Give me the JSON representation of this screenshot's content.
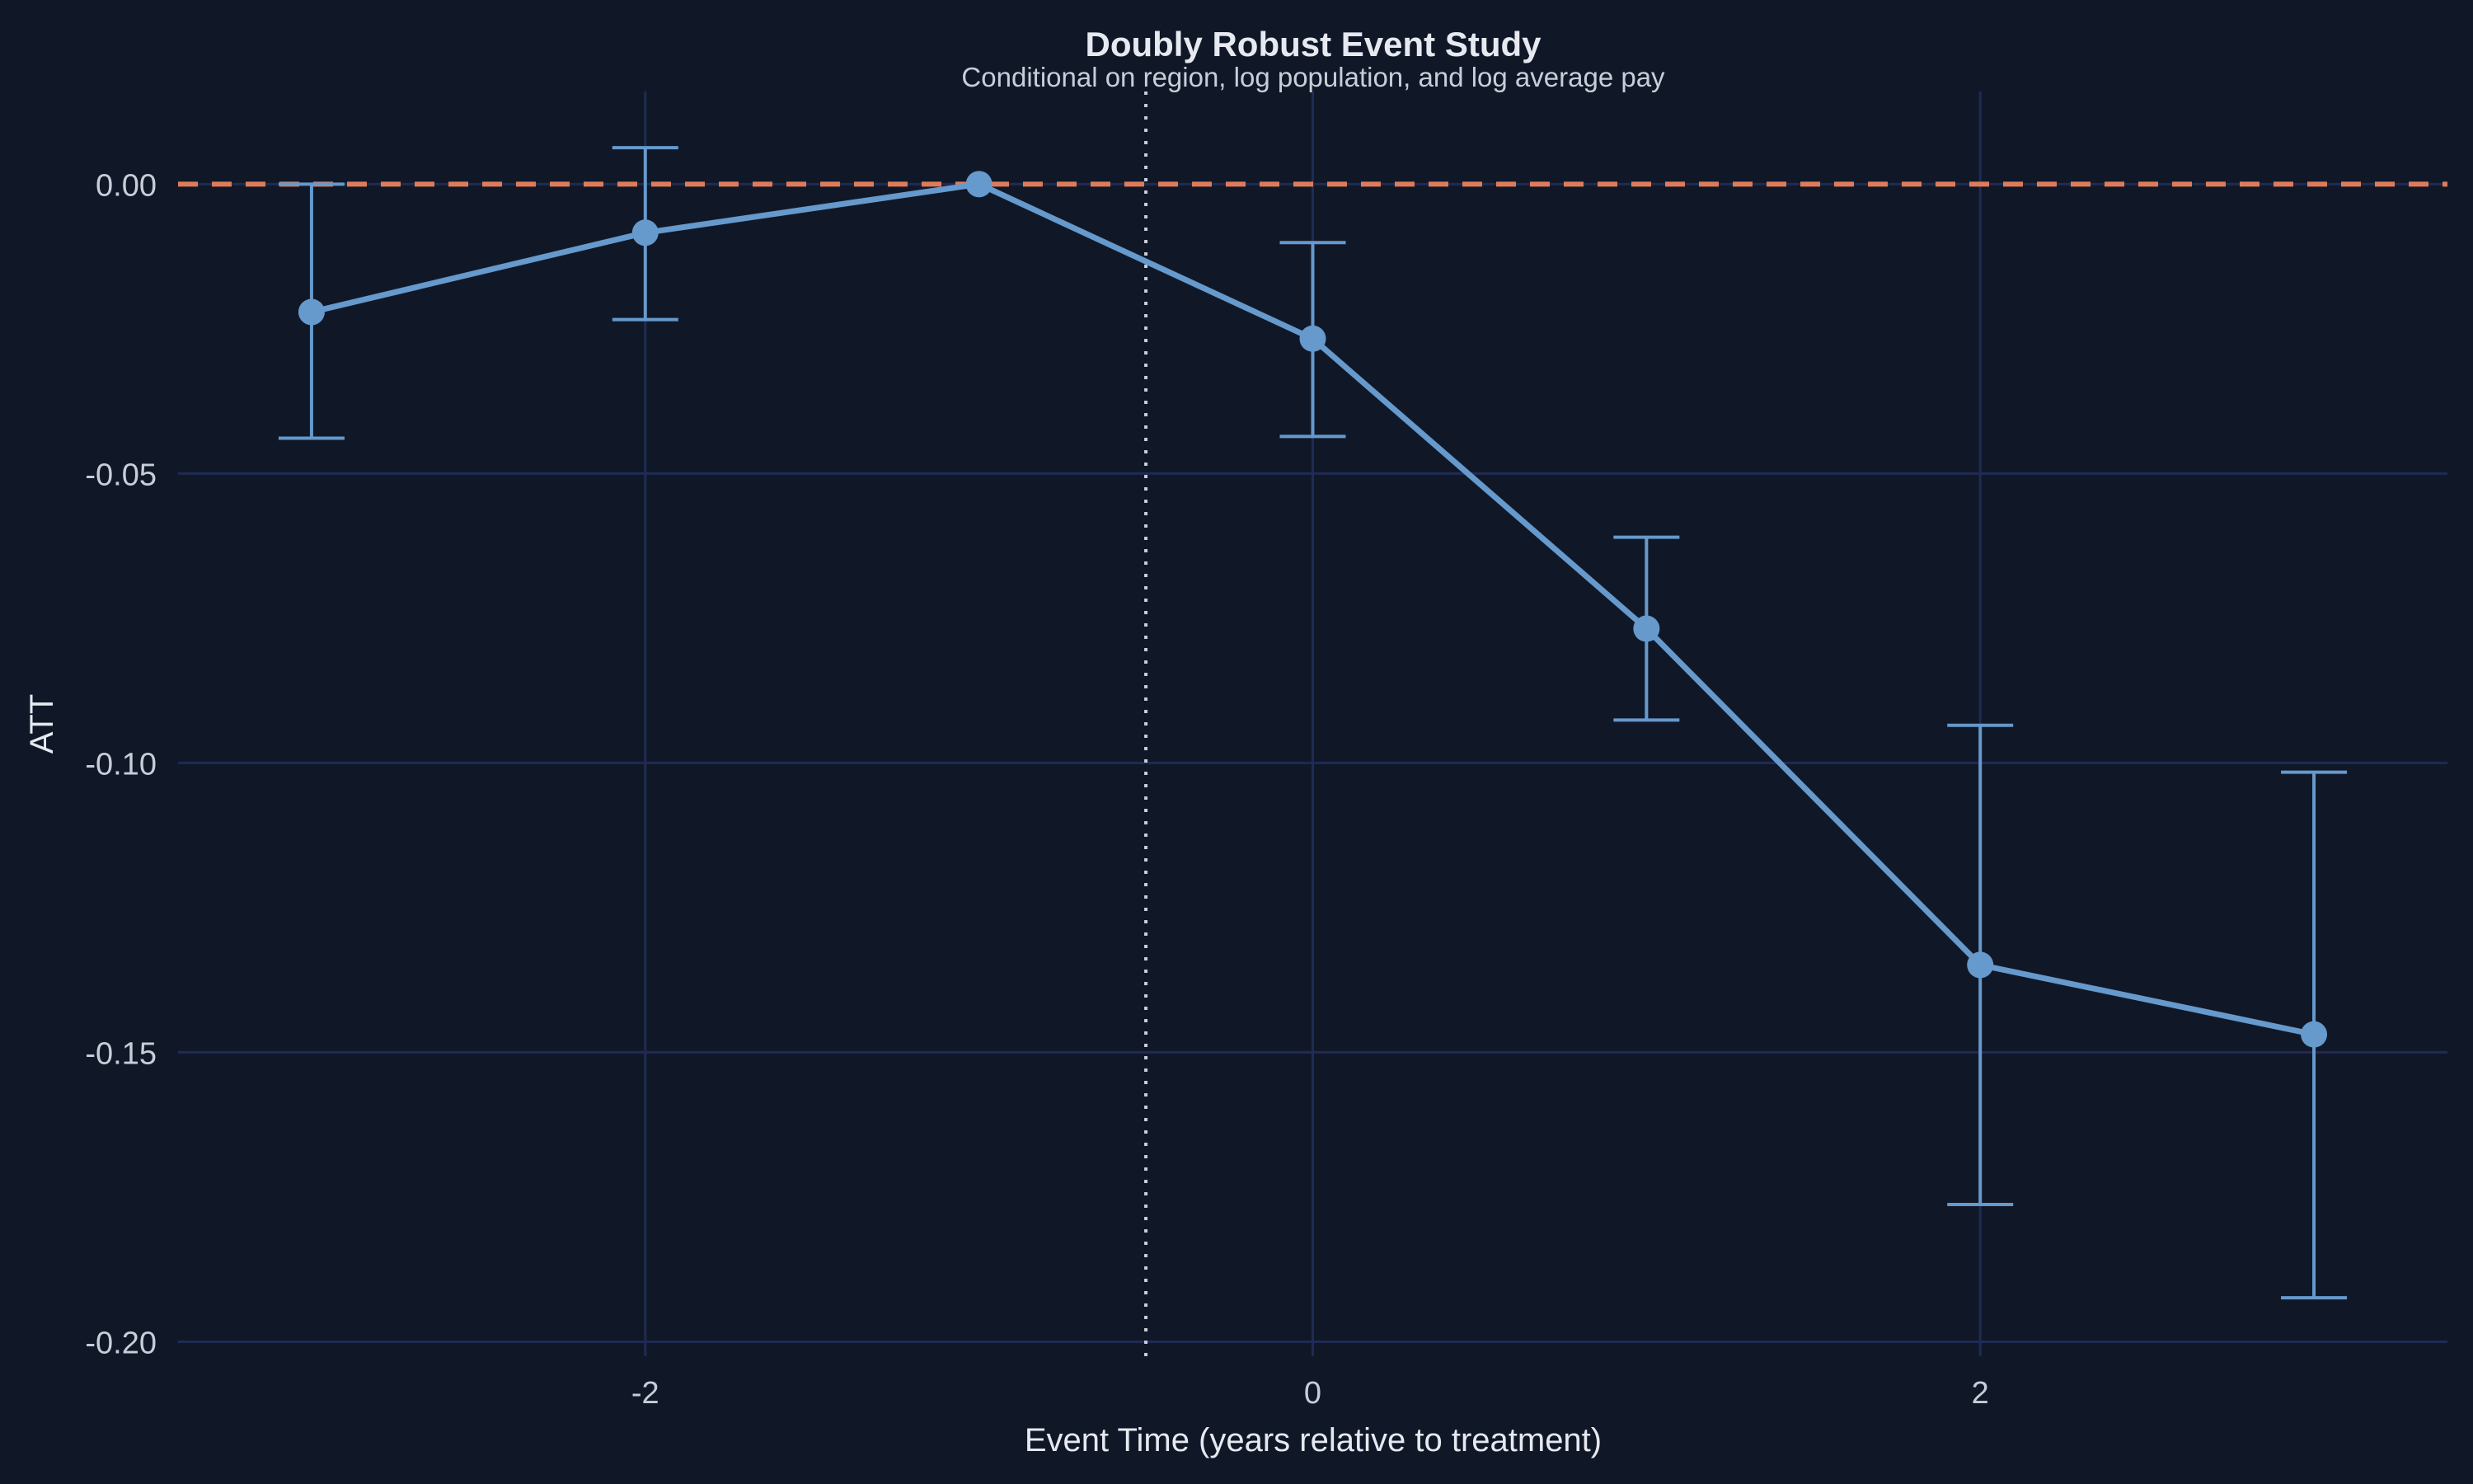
{
  "chart_data": {
    "type": "line",
    "title": "Doubly Robust Event Study",
    "subtitle": "Conditional on region, log population, and log average pay",
    "xlabel": "Event Time (years relative to treatment)",
    "ylabel": "ATT",
    "xlim": [
      -3.4,
      3.4
    ],
    "ylim": [
      -0.2025,
      0.016
    ],
    "x_ticks": [
      -2,
      0,
      2
    ],
    "x_tick_labels": [
      "-2",
      "0",
      "2"
    ],
    "y_ticks": [
      0.0,
      -0.05,
      -0.1,
      -0.15,
      -0.2
    ],
    "y_tick_labels": [
      "0.00",
      "-0.05",
      "-0.10",
      "-0.15",
      "-0.20"
    ],
    "grid": true,
    "reference_lines": {
      "horizontal_dashed_y": 0,
      "vertical_dotted_x": -0.5
    },
    "x": [
      -3,
      -2,
      -1,
      0,
      1,
      2,
      3
    ],
    "att": [
      -0.0221,
      -0.0084,
      0.0,
      -0.0267,
      -0.0768,
      -0.1349,
      -0.1469
    ],
    "ci_lower": [
      -0.0439,
      -0.0234,
      null,
      -0.0436,
      -0.0926,
      -0.1763,
      -0.1924
    ],
    "ci_upper": [
      0.0,
      0.0063,
      null,
      -0.0101,
      -0.061,
      -0.0935,
      -0.1016
    ],
    "colors": {
      "background": "#101828",
      "grid": "#1f2b55",
      "series": "#6699cc",
      "zero_line": "#e07b5a",
      "vline": "#c8cdd8",
      "text": "#e6e9f0"
    }
  }
}
